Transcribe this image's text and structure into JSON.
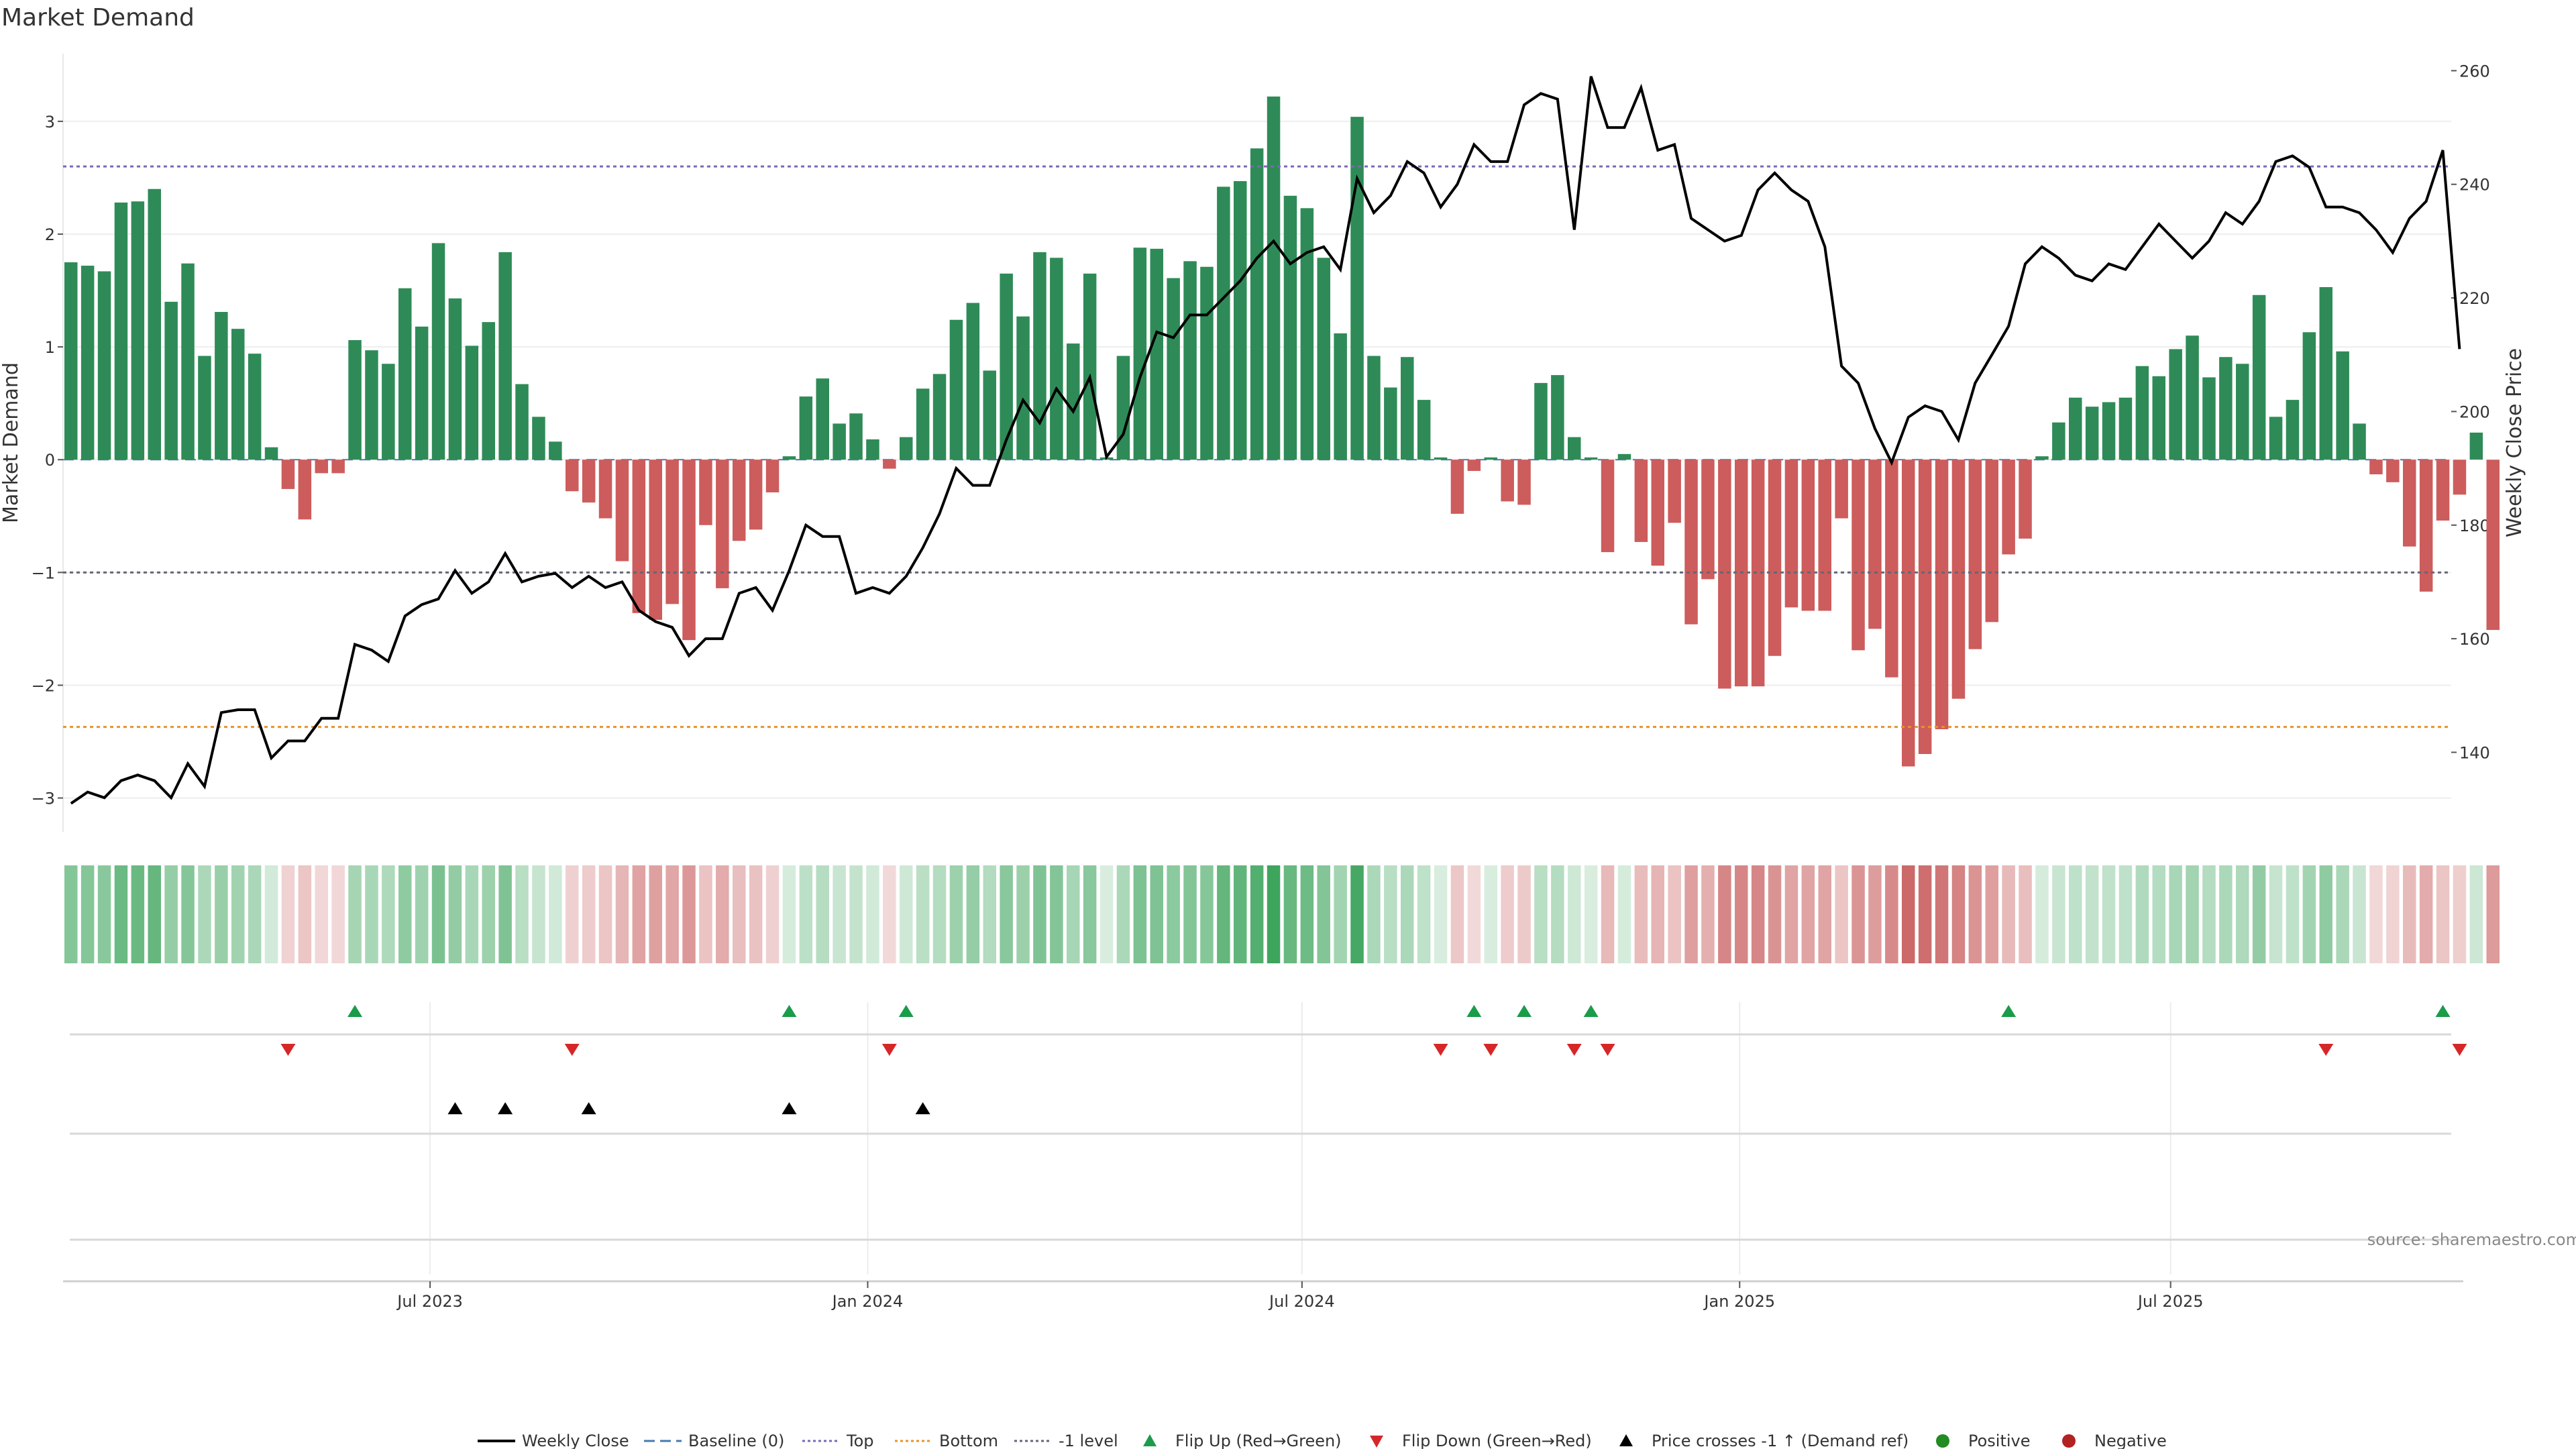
{
  "title": "Market Demand",
  "source": "source: sharemaestro.com",
  "colors": {
    "pos": "#2e8b57",
    "neg": "#cd5c5c",
    "line": "#000000",
    "top": "#7b68b8",
    "bottom": "#e8932a",
    "minus1": "#666677",
    "flip_up": "#1a9c4a",
    "flip_down": "#d62728",
    "cross": "#000000"
  },
  "chart_data": {
    "type": "bar",
    "title": "Market Demand",
    "xlabel": "",
    "ylabel": "Market Demand",
    "y2label": "Weekly Close Price",
    "ylim": [
      -3.3,
      3.6
    ],
    "y2lim": [
      126,
      263
    ],
    "yticks": [
      3,
      2,
      1,
      0,
      -1,
      -2,
      -3
    ],
    "ytick_labels": [
      "3",
      "2",
      "1",
      "0",
      "−1",
      "−2",
      "−3"
    ],
    "y2ticks": [
      260,
      240,
      220,
      200,
      180,
      160,
      140
    ],
    "y2tick_labels": [
      "260",
      "240",
      "220",
      "200",
      "180",
      "160",
      "140"
    ],
    "x_labels": [
      "Jul 2023",
      "Jan 2024",
      "Jul 2024",
      "Jan 2025",
      "Jul 2025"
    ],
    "x_label_index": [
      21.5,
      47.7,
      73.7,
      99.9,
      125.7
    ],
    "levels": {
      "top": 2.6,
      "bottom": -2.37,
      "minus_one": -1
    },
    "series": [
      {
        "name": "Market Demand",
        "values": [
          1.75,
          1.72,
          1.67,
          2.28,
          2.29,
          2.4,
          1.4,
          1.74,
          0.92,
          1.31,
          1.16,
          0.94,
          0.11,
          -0.26,
          -0.53,
          -0.12,
          -0.12,
          1.06,
          0.97,
          0.85,
          1.52,
          1.18,
          1.92,
          1.43,
          1.01,
          1.22,
          1.84,
          0.67,
          0.38,
          0.16,
          -0.28,
          -0.38,
          -0.52,
          -0.9,
          -1.36,
          -1.42,
          -1.28,
          -1.6,
          -0.58,
          -1.14,
          -0.72,
          -0.62,
          -0.29,
          0.03,
          0.56,
          0.72,
          0.32,
          0.41,
          0.18,
          -0.08,
          0.2,
          0.63,
          0.76,
          1.24,
          1.39,
          0.79,
          1.65,
          1.27,
          1.84,
          1.79,
          1.03,
          1.65,
          0.02,
          0.92,
          1.88,
          1.87,
          1.61,
          1.76,
          1.71,
          2.42,
          2.47,
          2.76,
          3.22,
          2.34,
          2.23,
          1.79,
          1.12,
          3.04,
          0.92,
          0.64,
          0.91,
          0.53,
          0.02,
          -0.48,
          -0.1,
          0.02,
          -0.37,
          -0.4,
          0.68,
          0.75,
          0.2,
          0.02,
          -0.82,
          0.05,
          -0.73,
          -0.94,
          -0.56,
          -1.46,
          -1.06,
          -2.03,
          -2.01,
          -2.01,
          -1.74,
          -1.31,
          -1.34,
          -1.34,
          -0.52,
          -1.69,
          -1.5,
          -1.93,
          -2.72,
          -2.61,
          -2.39,
          -2.12,
          -1.68,
          -1.44,
          -0.84,
          -0.7,
          0.03,
          0.33,
          0.55,
          0.47,
          0.51,
          0.55,
          0.83,
          0.74,
          0.98,
          1.1,
          0.73,
          0.91,
          0.85,
          1.46,
          0.38,
          0.53,
          1.13,
          1.53,
          0.96,
          0.32,
          -0.13,
          -0.2,
          -0.77,
          -1.17,
          -0.54,
          -0.31,
          0.24,
          -1.51
        ]
      },
      {
        "name": "Weekly Close",
        "values": [
          131,
          133,
          132,
          135,
          136,
          135,
          132,
          138,
          134,
          147,
          147.5,
          147.5,
          139,
          142,
          142,
          146,
          146,
          159,
          158,
          156,
          164,
          166,
          167,
          172,
          168,
          170,
          175,
          170,
          171,
          171.5,
          169,
          171,
          169,
          170,
          165,
          163,
          162,
          157,
          160,
          160,
          168,
          169,
          165,
          172,
          180,
          178,
          178,
          168,
          169,
          168,
          171,
          176,
          182,
          190,
          187,
          187,
          195,
          202,
          198,
          204,
          200,
          206,
          192,
          196,
          206,
          214,
          213,
          217,
          217,
          220,
          223,
          227,
          230,
          226,
          228,
          229,
          225,
          241,
          235,
          238,
          244,
          242,
          236,
          240,
          247,
          244,
          244,
          254,
          256,
          255,
          232,
          259,
          250,
          250,
          257,
          246,
          247,
          234,
          232,
          230,
          231,
          239,
          242,
          239,
          237,
          229,
          208,
          205,
          197,
          191,
          199,
          201,
          200,
          195,
          205,
          210,
          215,
          226,
          229,
          227,
          224,
          223,
          226,
          225,
          229,
          233,
          230,
          227,
          230,
          235,
          233,
          237,
          244,
          245,
          243,
          236,
          236,
          235,
          232,
          228,
          234,
          237,
          246,
          211
        ]
      }
    ],
    "bands": {
      "name": "Demand heat",
      "values": "same as Market Demand"
    },
    "flip_up_index": [
      17,
      43,
      50,
      84,
      87,
      91,
      116,
      142
    ],
    "flip_down_index": [
      13,
      30,
      49,
      82,
      85,
      90,
      92,
      135,
      143
    ],
    "price_cross_index": [
      23,
      26,
      31,
      43,
      51
    ],
    "legend": [
      "Weekly Close",
      "Baseline (0)",
      "Top",
      "Bottom",
      "-1 level",
      "Flip Up (Red→Green)",
      "Flip Down (Green→Red)",
      "Price crosses -1 ↑ (Demand ref)",
      "Positive",
      "Negative"
    ]
  }
}
